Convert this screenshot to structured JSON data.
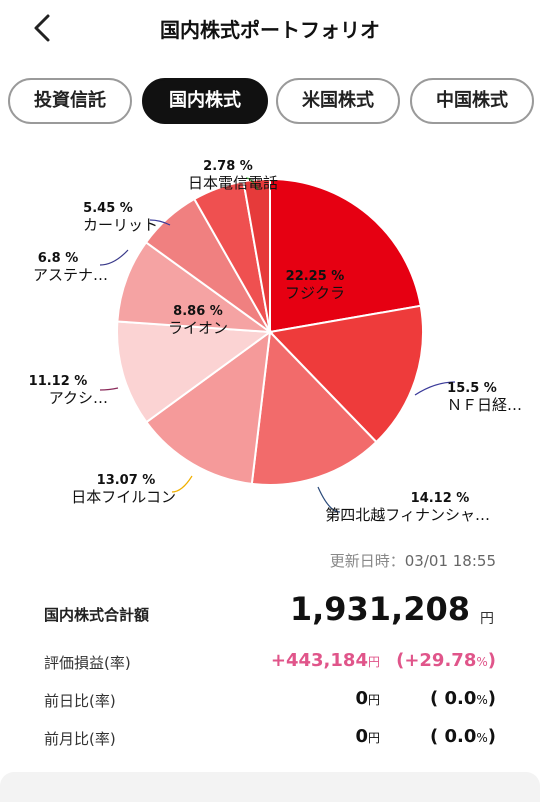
{
  "header": {
    "title": "国内株式ポートフォリオ"
  },
  "tabs": [
    {
      "label": "投資信託",
      "active": false
    },
    {
      "label": "国内株式",
      "active": true
    },
    {
      "label": "米国株式",
      "active": false
    },
    {
      "label": "中国株式",
      "active": false
    }
  ],
  "chart_data": {
    "type": "pie",
    "slices": [
      {
        "name": "フジクラ",
        "percent": 22.25,
        "percent_label": "22.25 %",
        "color": "#e60012",
        "label_inside": true
      },
      {
        "name": "ＮＦ日経…",
        "percent": 15.5,
        "percent_label": "15.5 %",
        "color": "#ee3b3b",
        "label_inside": false
      },
      {
        "name": "第四北越フィナンシャ…",
        "percent": 14.12,
        "percent_label": "14.12 %",
        "color": "#f26b6b",
        "label_inside": false
      },
      {
        "name": "日本フイルコン",
        "percent": 13.07,
        "percent_label": "13.07 %",
        "color": "#f59a9a",
        "label_inside": false
      },
      {
        "name": "アクシ…",
        "percent": 11.12,
        "percent_label": "11.12 %",
        "color": "#fbd3d3",
        "label_inside": false
      },
      {
        "name": "ライオン",
        "percent": 8.86,
        "percent_label": "8.86 %",
        "color": "#f5a3a3",
        "label_inside": true
      },
      {
        "name": "アステナ…",
        "percent": 6.8,
        "percent_label": "6.8 %",
        "color": "#f08080",
        "label_inside": false
      },
      {
        "name": "カーリット",
        "percent": 5.45,
        "percent_label": "5.45 %",
        "color": "#ef5050",
        "label_inside": false
      },
      {
        "name": "日本電信電話",
        "percent": 2.78,
        "percent_label": "2.78 %",
        "color": "#e63a3a",
        "label_inside": false
      }
    ],
    "leader_colors": [
      "#ff4040",
      "#3a3a9a",
      "#2a4a7a",
      "#f0b000",
      "#8a2a5a",
      "#555555",
      "#3a3a8a",
      "#3a3a9a",
      "#3aaa3a"
    ]
  },
  "updated": {
    "label": "更新日時：",
    "value": "03/01 18:55"
  },
  "summary": {
    "total_label": "国内株式合計額",
    "total_value": "1,931,208",
    "yen": "円",
    "rows": [
      {
        "label": "評価損益(率)",
        "value": "+443,184",
        "rate": "+29.78",
        "positive": true
      },
      {
        "label": "前日比(率)",
        "value": "0",
        "rate": "0.0",
        "positive": false
      },
      {
        "label": "前月比(率)",
        "value": "0",
        "rate": "0.0",
        "positive": false
      }
    ],
    "percent_sign": "%"
  }
}
